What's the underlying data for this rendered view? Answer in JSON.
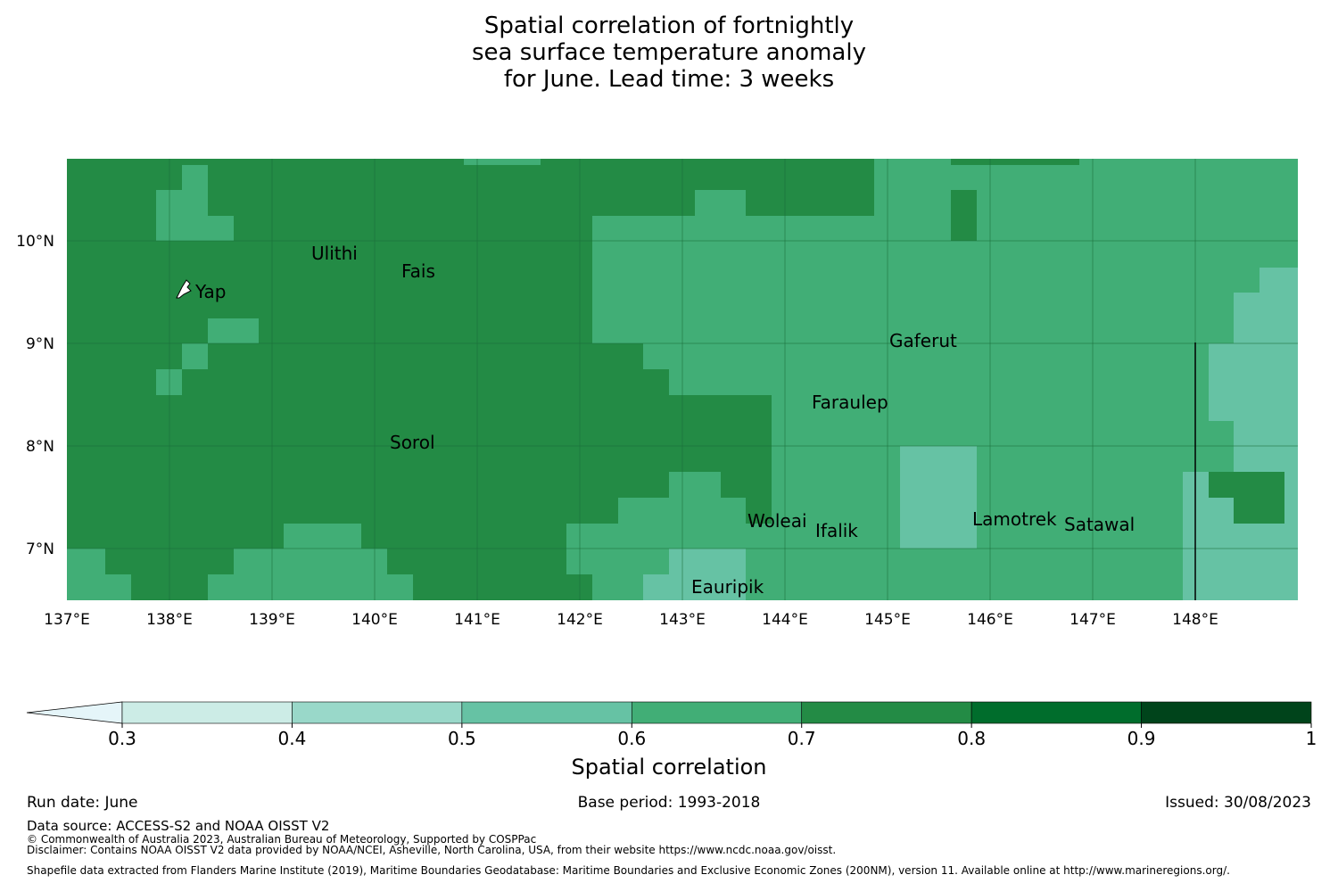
{
  "title": {
    "line1": "Spatial correlation of fortnightly",
    "line2": "sea surface temperature anomaly",
    "line3": "for June. Lead time: 3 weeks"
  },
  "map": {
    "lon_ticks": [
      "137°E",
      "138°E",
      "139°E",
      "140°E",
      "141°E",
      "142°E",
      "143°E",
      "144°E",
      "145°E",
      "146°E",
      "147°E",
      "148°E"
    ],
    "lat_ticks": [
      "10°N",
      "9°N",
      "8°N",
      "7°N"
    ],
    "places": [
      {
        "name": "Ulithi"
      },
      {
        "name": "Fais"
      },
      {
        "name": "Yap"
      },
      {
        "name": "Gaferut"
      },
      {
        "name": "Faraulep"
      },
      {
        "name": "Sorol"
      },
      {
        "name": "Woleai"
      },
      {
        "name": "Ifalik"
      },
      {
        "name": "Lamotrek"
      },
      {
        "name": "Satawal"
      },
      {
        "name": "Eauripik"
      }
    ],
    "colors": {
      "c07_08": "#238b45",
      "c06_07": "#41ae76",
      "c05_06": "#66c2a4",
      "gridline": "#1a6e38"
    }
  },
  "colorbar": {
    "ticks": [
      "0.3",
      "0.4",
      "0.5",
      "0.6",
      "0.7",
      "0.8",
      "0.9",
      "1"
    ],
    "colors": [
      "#ccece6",
      "#99d8c9",
      "#66c2a4",
      "#41ae76",
      "#238b45",
      "#006d2c",
      "#00441b"
    ],
    "extend_color": "#e5f5f9",
    "title": "Spatial correlation"
  },
  "footer": {
    "run_date": "Run date: June",
    "base_period": "Base period: 1993-2018",
    "issued": "Issued: 30/08/2023",
    "data_source": "Data source: ACCESS-S2 and NOAA OISST V2",
    "copyright": "© Commonwealth of Australia 2023, Australian Bureau of Meteorology, Supported by COSPPac",
    "disclaimer": "Disclaimer: Contains NOAA OISST V2 data provided by NOAA/NCEI, Asheville, North Carolina, USA, from their website https://www.ncdc.noaa.gov/oisst.",
    "shapefile": "Shapefile data extracted from Flanders Marine Institute (2019), Maritime Boundaries Geodatabase: Maritime Boundaries and Exclusive Economic Zones (200NM), version 11. Available online at http://www.marineregions.org/."
  }
}
